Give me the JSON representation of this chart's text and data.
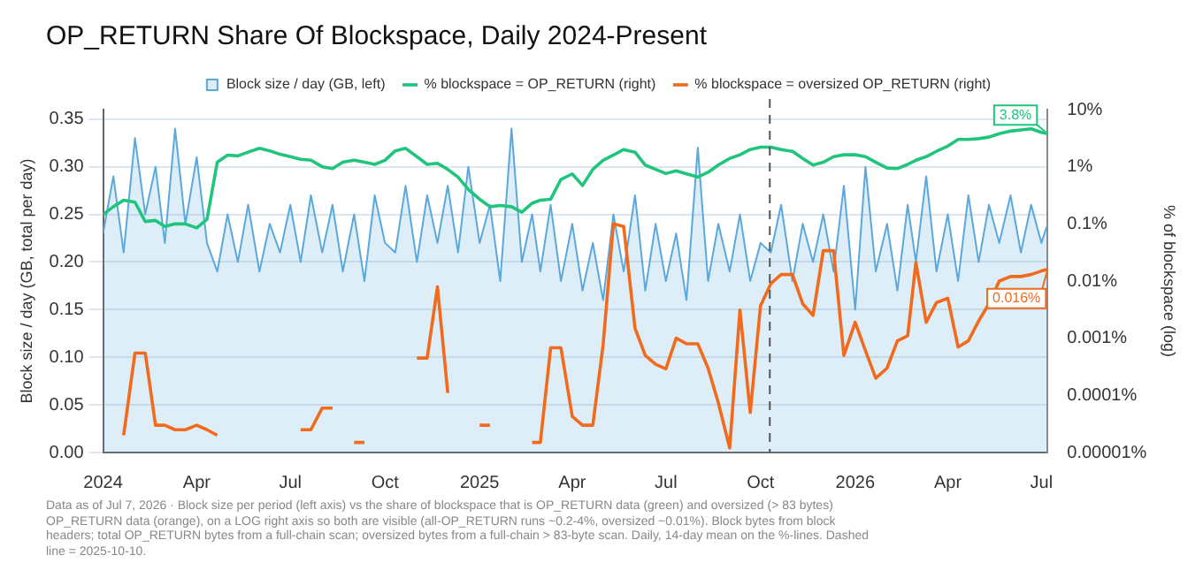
{
  "chart_data": {
    "type": "line",
    "title": "OP_RETURN Share Of Blockspace, Daily 2024-Present",
    "ylabel": "Block size / day (GB, total per day)",
    "y2label": "% of blockspace (log)",
    "x": [
      "2024-01-01",
      "2024-01-11",
      "2024-01-21",
      "2024-02-01",
      "2024-02-11",
      "2024-02-21",
      "2024-03-01",
      "2024-03-11",
      "2024-03-21",
      "2024-04-01",
      "2024-04-11",
      "2024-04-21",
      "2024-05-01",
      "2024-05-11",
      "2024-05-21",
      "2024-06-01",
      "2024-06-11",
      "2024-06-21",
      "2024-07-01",
      "2024-07-11",
      "2024-07-21",
      "2024-08-01",
      "2024-08-11",
      "2024-08-21",
      "2024-09-01",
      "2024-09-11",
      "2024-09-21",
      "2024-10-01",
      "2024-10-11",
      "2024-10-21",
      "2024-11-01",
      "2024-11-11",
      "2024-11-21",
      "2024-12-01",
      "2024-12-11",
      "2024-12-21",
      "2025-01-01",
      "2025-01-11",
      "2025-01-21",
      "2025-02-01",
      "2025-02-11",
      "2025-02-21",
      "2025-03-01",
      "2025-03-11",
      "2025-03-21",
      "2025-04-01",
      "2025-04-11",
      "2025-04-21",
      "2025-05-01",
      "2025-05-11",
      "2025-05-21",
      "2025-06-01",
      "2025-06-11",
      "2025-06-21",
      "2025-07-01",
      "2025-07-11",
      "2025-07-21",
      "2025-08-01",
      "2025-08-11",
      "2025-08-21",
      "2025-09-01",
      "2025-09-11",
      "2025-09-21",
      "2025-10-01",
      "2025-10-11",
      "2025-10-21",
      "2025-11-01",
      "2025-11-11",
      "2025-11-21",
      "2025-12-01",
      "2025-12-11",
      "2025-12-21",
      "2026-01-01",
      "2026-01-11",
      "2026-01-21",
      "2026-02-01",
      "2026-02-11",
      "2026-02-21",
      "2026-03-01",
      "2026-03-11",
      "2026-03-21",
      "2026-04-01",
      "2026-04-11",
      "2026-04-21",
      "2026-05-01",
      "2026-05-11",
      "2026-05-21",
      "2026-06-01",
      "2026-06-11",
      "2026-06-21",
      "2026-07-01",
      "2026-07-07"
    ],
    "series": [
      {
        "name": "Block size / day (GB, left)",
        "type": "area",
        "color": "#5ba8dd",
        "values": [
          0.23,
          0.29,
          0.21,
          0.33,
          0.25,
          0.3,
          0.22,
          0.34,
          0.24,
          0.31,
          0.22,
          0.19,
          0.25,
          0.2,
          0.26,
          0.19,
          0.24,
          0.21,
          0.26,
          0.2,
          0.27,
          0.21,
          0.26,
          0.19,
          0.25,
          0.18,
          0.27,
          0.22,
          0.21,
          0.28,
          0.2,
          0.27,
          0.22,
          0.28,
          0.21,
          0.3,
          0.22,
          0.26,
          0.18,
          0.34,
          0.2,
          0.25,
          0.19,
          0.26,
          0.18,
          0.24,
          0.17,
          0.22,
          0.16,
          0.25,
          0.19,
          0.27,
          0.17,
          0.24,
          0.18,
          0.23,
          0.16,
          0.32,
          0.18,
          0.24,
          0.19,
          0.25,
          0.18,
          0.22,
          0.21,
          0.26,
          0.18,
          0.24,
          0.2,
          0.25,
          0.19,
          0.28,
          0.15,
          0.3,
          0.19,
          0.24,
          0.17,
          0.26,
          0.2,
          0.29,
          0.19,
          0.25,
          0.18,
          0.27,
          0.2,
          0.26,
          0.22,
          0.27,
          0.21,
          0.26,
          0.22,
          0.24
        ]
      },
      {
        "name": "% blockspace = OP_RETURN (right)",
        "color": "#1fc47d",
        "axis": "y2",
        "value_labels": [
          null,
          null,
          null,
          null,
          null,
          null,
          null,
          null,
          null,
          null,
          null,
          null,
          null,
          null,
          null,
          null,
          null,
          null,
          null,
          null,
          null,
          null,
          null,
          null,
          null,
          null,
          null,
          null,
          null,
          null,
          null,
          null,
          null,
          null,
          null,
          null,
          null,
          null,
          null,
          null,
          null,
          null,
          null,
          null,
          null,
          null,
          null,
          null,
          null,
          null,
          null,
          null,
          null,
          null,
          null,
          null,
          null,
          null,
          null,
          null,
          null,
          null,
          null,
          null,
          null,
          null,
          null,
          null,
          null,
          null,
          null,
          null,
          null,
          null,
          null,
          null,
          null,
          null,
          null,
          null,
          null,
          null,
          null,
          null,
          null,
          null,
          null,
          null,
          null,
          null,
          null,
          "3.8%"
        ],
        "values": [
          0.145,
          0.2,
          0.26,
          0.24,
          0.11,
          0.115,
          0.09,
          0.1,
          0.1,
          0.085,
          0.12,
          1.2,
          1.6,
          1.55,
          1.8,
          2.1,
          1.9,
          1.65,
          1.5,
          1.35,
          1.3,
          1.0,
          0.93,
          1.2,
          1.3,
          1.2,
          1.1,
          1.3,
          1.9,
          2.1,
          1.5,
          1.1,
          1.15,
          0.9,
          0.66,
          0.4,
          0.27,
          0.2,
          0.21,
          0.2,
          0.16,
          0.23,
          0.26,
          0.27,
          0.6,
          0.75,
          0.47,
          0.9,
          1.3,
          1.6,
          2.0,
          1.8,
          1.07,
          0.9,
          0.76,
          0.85,
          0.75,
          0.66,
          0.8,
          1.07,
          1.4,
          1.62,
          2.0,
          2.2,
          2.2,
          2.0,
          1.86,
          1.4,
          1.07,
          1.2,
          1.5,
          1.62,
          1.62,
          1.5,
          1.2,
          0.95,
          0.93,
          1.1,
          1.3,
          1.5,
          1.86,
          2.3,
          3.0,
          3.0,
          3.1,
          3.3,
          3.8,
          4.2,
          4.4,
          4.6,
          4.0,
          3.8
        ]
      },
      {
        "name": "% blockspace = oversized OP_RETURN (right)",
        "color": "#f26a1b",
        "axis": "y2",
        "value_labels": [
          null,
          null,
          null,
          null,
          null,
          null,
          null,
          null,
          null,
          null,
          null,
          null,
          null,
          null,
          null,
          null,
          null,
          null,
          null,
          null,
          null,
          null,
          null,
          null,
          null,
          null,
          null,
          null,
          null,
          null,
          null,
          null,
          null,
          null,
          null,
          null,
          null,
          null,
          null,
          null,
          null,
          null,
          null,
          null,
          null,
          null,
          null,
          null,
          null,
          null,
          null,
          null,
          null,
          null,
          null,
          null,
          null,
          null,
          null,
          null,
          null,
          null,
          null,
          null,
          null,
          null,
          null,
          null,
          null,
          null,
          null,
          null,
          null,
          null,
          null,
          null,
          null,
          null,
          null,
          null,
          null,
          null,
          null,
          null,
          null,
          null,
          null,
          null,
          null,
          null,
          null,
          "0.016%"
        ],
        "values": [
          null,
          null,
          2e-05,
          0.00055,
          0.00055,
          3e-05,
          3e-05,
          2.5e-05,
          2.5e-05,
          3e-05,
          2.5e-05,
          2e-05,
          null,
          null,
          null,
          null,
          null,
          null,
          null,
          2.5e-05,
          2.5e-05,
          6e-05,
          6e-05,
          null,
          1.5e-05,
          1.5e-05,
          null,
          null,
          null,
          null,
          0.00045,
          0.00045,
          0.0079,
          0.00011,
          null,
          null,
          3e-05,
          3e-05,
          null,
          null,
          null,
          1.5e-05,
          1.5e-05,
          0.00068,
          0.00068,
          4.3e-05,
          3e-05,
          3e-05,
          0.00077,
          0.1,
          0.09,
          0.0015,
          0.0005,
          0.00035,
          0.00029,
          0.001,
          0.0008,
          0.0008,
          0.0003,
          7.4e-05,
          1.2e-05,
          0.0031,
          5e-05,
          0.0037,
          0.009,
          0.013,
          0.013,
          0.004,
          0.0025,
          0.034,
          0.034,
          0.0005,
          0.0019,
          0.0006,
          0.0002,
          0.0003,
          0.0009,
          0.0011,
          0.021,
          0.0019,
          0.0042,
          0.005,
          0.0007,
          0.0009,
          0.002,
          0.004,
          0.01,
          0.012,
          0.012,
          0.013,
          0.015,
          0.016
        ]
      }
    ],
    "xlim": [
      "2024-01-01",
      "2026-07-07"
    ],
    "xticks": [
      {
        "value": "2024-01-01",
        "label": "2024"
      },
      {
        "value": "2024-04-01",
        "label": "Apr"
      },
      {
        "value": "2024-07-01",
        "label": "Jul"
      },
      {
        "value": "2024-10-01",
        "label": "Oct"
      },
      {
        "value": "2025-01-01",
        "label": "2025"
      },
      {
        "value": "2025-04-01",
        "label": "Apr"
      },
      {
        "value": "2025-07-01",
        "label": "Jul"
      },
      {
        "value": "2025-10-01",
        "label": "Oct"
      },
      {
        "value": "2026-01-01",
        "label": "2026"
      },
      {
        "value": "2026-04-01",
        "label": "Apr"
      },
      {
        "value": "2026-07-01",
        "label": "Jul"
      }
    ],
    "ylim": [
      0,
      0.36
    ],
    "yticks": [
      {
        "value": 0,
        "label": "0.00"
      },
      {
        "value": 0.05,
        "label": "0.05"
      },
      {
        "value": 0.1,
        "label": "0.10"
      },
      {
        "value": 0.15,
        "label": "0.15"
      },
      {
        "value": 0.2,
        "label": "0.20"
      },
      {
        "value": 0.25,
        "label": "0.25"
      },
      {
        "value": 0.3,
        "label": "0.30"
      },
      {
        "value": 0.35,
        "label": "0.35"
      }
    ],
    "y2lim": [
      1e-05,
      10
    ],
    "y2ticks": [
      {
        "value": 1e-05,
        "label": "0.00001%"
      },
      {
        "value": 0.0001,
        "label": "0.0001%"
      },
      {
        "value": 0.001,
        "label": "0.001%"
      },
      {
        "value": 0.01,
        "label": "0.01%"
      },
      {
        "value": 0.1,
        "label": "0.1%"
      },
      {
        "value": 1,
        "label": "1%"
      },
      {
        "value": 10,
        "label": "10%"
      }
    ],
    "log": "y2",
    "grid": "y",
    "legend": "top",
    "ref_lines": [
      {
        "axis": "x",
        "value": "2025-10-10",
        "color": "#555555",
        "line_style": "dashed"
      }
    ],
    "annotations": [
      "Data as of Jul 7, 2026 · Block size per period (left axis) vs the share of blockspace that is OP_RETURN data (green) and oversized (> 83 bytes) OP_RETURN data (orange), on a LOG right axis so both are visible (all-OP_RETURN runs ~0.2-4%, oversized ~0.01%). Block bytes from block headers; total OP_RETURN bytes from a full-chain scan; oversized bytes from a full-chain > 83-byte scan. Daily, 14-day mean on the %-lines. Dashed line = 2025-10-10."
    ]
  }
}
